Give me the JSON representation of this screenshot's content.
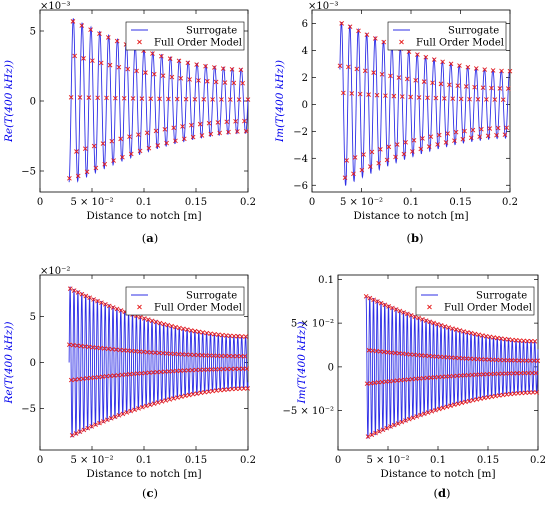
{
  "chart_data": [
    {
      "type": "line",
      "caption_open": "(",
      "caption_letter": "a",
      "caption_close": ")",
      "xlabel": "Distance to notch [m]",
      "ylabel": "Re(T(400 kHz))",
      "exponent_label": "×10⁻³",
      "xlim": [
        0,
        0.2
      ],
      "ylim": [
        -6.5,
        6.5
      ],
      "xticks": [
        0,
        0.05,
        0.1,
        0.15,
        0.2
      ],
      "xtick_labels": [
        "0",
        "5 × 10⁻²",
        "0.1",
        "0.15",
        "0.2"
      ],
      "yticks": [
        -5,
        0,
        5
      ],
      "ytick_labels": [
        "−5",
        "0",
        "5"
      ],
      "legend": [
        "Surrogate",
        "Full Order Model"
      ],
      "legend_position": "top-right",
      "colors": {
        "surrogate": "#2f2fe6",
        "fom": "#e61e1e"
      },
      "signal": {
        "x_start": 0.028,
        "x_end": 0.2,
        "period": 0.0085,
        "phase": -1.4,
        "peak_x": 0.032,
        "peak_amp": 5.9,
        "final_amp": 2.3,
        "start_value": -5.8
      },
      "series": [
        {
          "name": "Surrogate",
          "style": "line"
        },
        {
          "name": "Full Order Model",
          "style": "markers",
          "marker": "×",
          "points_per_period": 5
        }
      ]
    },
    {
      "type": "line",
      "caption_open": "(",
      "caption_letter": "b",
      "caption_close": ")",
      "xlabel": "Distance to notch [m]",
      "ylabel": "Im(T(400 kHz))",
      "exponent_label": "×10⁻³",
      "xlim": [
        0,
        0.2
      ],
      "ylim": [
        -6.5,
        7
      ],
      "xticks": [
        0,
        0.05,
        0.1,
        0.15,
        0.2
      ],
      "xtick_labels": [
        "0",
        "5 × 10⁻²",
        "0.1",
        "0.15",
        "0.2"
      ],
      "yticks": [
        -6,
        -4,
        -2,
        0,
        2,
        4,
        6
      ],
      "ytick_labels": [
        "−6",
        "−4",
        "−2",
        "0",
        "2",
        "4",
        "6"
      ],
      "legend": [
        "Surrogate",
        "Full Order Model"
      ],
      "legend_position": "top-right",
      "colors": {
        "surrogate": "#2f2fe6",
        "fom": "#e61e1e"
      },
      "signal": {
        "x_start": 0.028,
        "x_end": 0.2,
        "period": 0.0085,
        "phase": 0.3,
        "peak_x": 0.032,
        "peak_amp": 6.1,
        "final_amp": 2.5,
        "start_value": 2.6
      },
      "series": [
        {
          "name": "Surrogate",
          "style": "line"
        },
        {
          "name": "Full Order Model",
          "style": "markers",
          "marker": "×",
          "points_per_period": 5
        }
      ]
    },
    {
      "type": "line",
      "caption_open": "(",
      "caption_letter": "c",
      "caption_close": ")",
      "xlabel": "Distance to notch [m]",
      "ylabel": "Re(T(400 kHz))",
      "exponent_label": "×10⁻²",
      "xlim": [
        0,
        0.2
      ],
      "ylim": [
        -9.5,
        9.5
      ],
      "xticks": [
        0,
        0.05,
        0.1,
        0.15,
        0.2
      ],
      "xtick_labels": [
        "0",
        "5 × 10⁻²",
        "0.1",
        "0.15",
        "0.2"
      ],
      "yticks": [
        -5,
        0,
        5
      ],
      "ytick_labels": [
        "−5",
        "0",
        "5"
      ],
      "legend": [
        "Surrogate",
        "Full Order Model"
      ],
      "legend_position": "top-right",
      "colors": {
        "surrogate": "#2f2fe6",
        "fom": "#e61e1e"
      },
      "signal": {
        "x_start": 0.028,
        "x_end": 0.2,
        "period": 0.00375,
        "phase": 0.0,
        "peak_x": 0.028,
        "peak_amp": 8.3,
        "final_amp": 2.9,
        "start_value": 0.0
      },
      "series": [
        {
          "name": "Surrogate",
          "style": "line"
        },
        {
          "name": "Full Order Model",
          "style": "markers",
          "marker": "×",
          "points_per_period": 4
        }
      ]
    },
    {
      "type": "line",
      "caption_open": "(",
      "caption_letter": "d",
      "caption_close": ")",
      "xlabel": "Distance to notch [m]",
      "ylabel": "Im(T(400 kHz))",
      "exponent_label": "",
      "xlim": [
        0,
        0.2
      ],
      "ylim": [
        -0.095,
        0.105
      ],
      "xticks": [
        0,
        0.05,
        0.1,
        0.15,
        0.2
      ],
      "xtick_labels": [
        "0",
        "5 × 10⁻²",
        "0.1",
        "0.15",
        "0.2"
      ],
      "yticks": [
        -0.05,
        0,
        0.05,
        0.1
      ],
      "ytick_labels": [
        "−5 × 10⁻²",
        "0",
        "5 × 10⁻²",
        "0.1"
      ],
      "legend": [
        "Surrogate",
        "Full Order Model"
      ],
      "legend_position": "top-right",
      "colors": {
        "surrogate": "#2f2fe6",
        "fom": "#e61e1e"
      },
      "signal": {
        "x_start": 0.028,
        "x_end": 0.2,
        "period": 0.00375,
        "phase": 1.5708,
        "peak_x": 0.028,
        "peak_amp": 0.083,
        "final_amp": 0.03,
        "start_value": 0.08
      },
      "series": [
        {
          "name": "Surrogate",
          "style": "line"
        },
        {
          "name": "Full Order Model",
          "style": "markers",
          "marker": "×",
          "points_per_period": 4
        }
      ]
    }
  ]
}
